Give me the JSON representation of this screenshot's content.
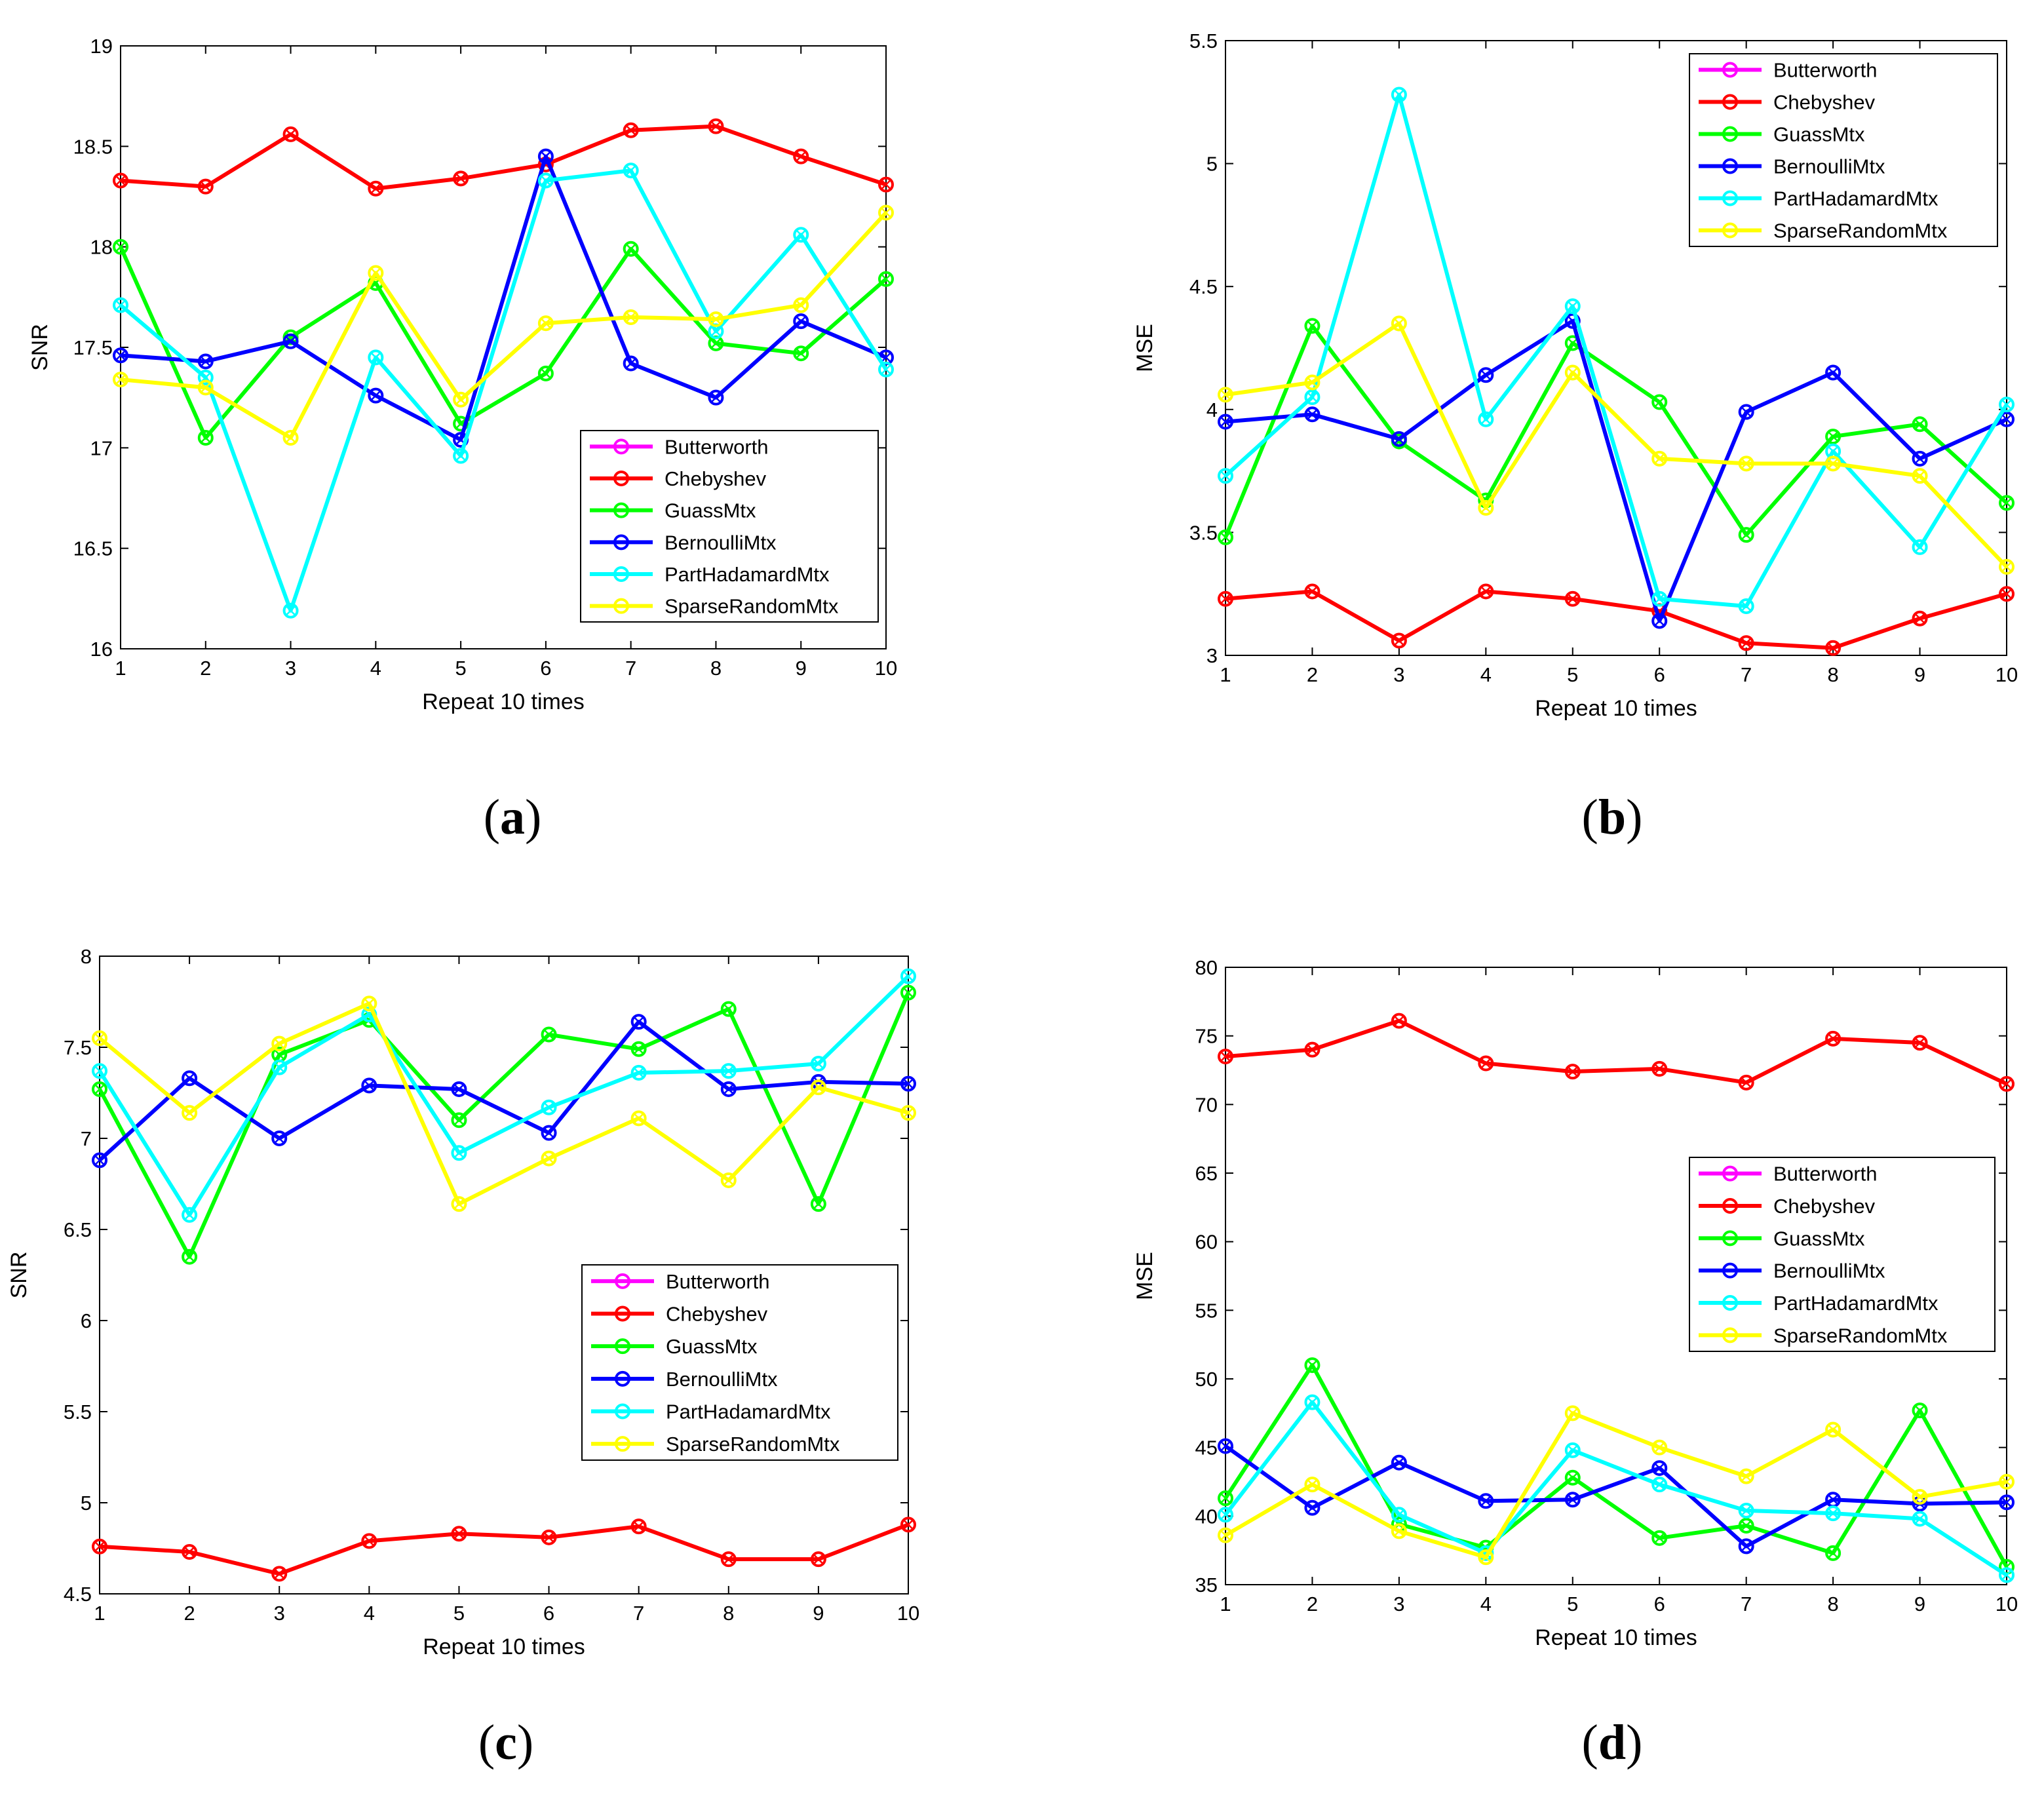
{
  "colors": {
    "Butterworth": "#ff00ff",
    "Chebyshev": "#ff0000",
    "GuassMtx": "#00ff00",
    "BernoulliMtx": "#0000ff",
    "PartHadamardMtx": "#00ffff",
    "SparseRandomMtx": "#ffff00"
  },
  "chart_data": [
    {
      "id": "a",
      "type": "line",
      "caption_letter": "a",
      "xlabel": "Repeat 10 times",
      "ylabel": "SNR",
      "xlim": [
        1,
        10
      ],
      "ylim": [
        16,
        19
      ],
      "yticks": [
        "16",
        "16.5",
        "17",
        "17.5",
        "18",
        "18.5",
        "19"
      ],
      "x": [
        1,
        2,
        3,
        4,
        5,
        6,
        7,
        8,
        9,
        10
      ],
      "legend_position": "lower-right",
      "legend": [
        "Butterworth",
        "Chebyshev",
        "GuassMtx",
        "BernoulliMtx",
        "PartHadamardMtx",
        "SparseRandomMtx"
      ],
      "series": [
        {
          "name": "Chebyshev",
          "values": [
            18.33,
            18.3,
            18.56,
            18.29,
            18.34,
            18.41,
            18.58,
            18.6,
            18.45,
            18.31
          ]
        },
        {
          "name": "GuassMtx",
          "values": [
            18.0,
            17.05,
            17.55,
            17.82,
            17.12,
            17.37,
            17.99,
            17.52,
            17.47,
            17.84
          ]
        },
        {
          "name": "BernoulliMtx",
          "values": [
            17.46,
            17.43,
            17.53,
            17.26,
            17.04,
            18.45,
            17.42,
            17.25,
            17.63,
            17.45
          ]
        },
        {
          "name": "PartHadamardMtx",
          "values": [
            17.71,
            17.35,
            16.19,
            17.45,
            16.96,
            18.33,
            18.38,
            17.58,
            18.06,
            17.39
          ]
        },
        {
          "name": "SparseRandomMtx",
          "values": [
            17.34,
            17.3,
            17.05,
            17.87,
            17.24,
            17.62,
            17.65,
            17.64,
            17.71,
            18.17
          ]
        }
      ]
    },
    {
      "id": "b",
      "type": "line",
      "caption_letter": "b",
      "xlabel": "Repeat 10 times",
      "ylabel": "MSE",
      "xlim": [
        1,
        10
      ],
      "ylim": [
        3,
        5.5
      ],
      "yticks": [
        "3",
        "3.5",
        "4",
        "4.5",
        "5",
        "5.5"
      ],
      "x": [
        1,
        2,
        3,
        4,
        5,
        6,
        7,
        8,
        9,
        10
      ],
      "legend_position": "top-right",
      "legend": [
        "Butterworth",
        "Chebyshev",
        "GuassMtx",
        "BernoulliMtx",
        "PartHadamardMtx",
        "SparseRandomMtx"
      ],
      "series": [
        {
          "name": "Chebyshev",
          "values": [
            3.23,
            3.26,
            3.06,
            3.26,
            3.23,
            3.18,
            3.05,
            3.03,
            3.15,
            3.25
          ]
        },
        {
          "name": "GuassMtx",
          "values": [
            3.48,
            4.34,
            3.87,
            3.63,
            4.27,
            4.03,
            3.49,
            3.89,
            3.94,
            3.62
          ]
        },
        {
          "name": "BernoulliMtx",
          "values": [
            3.95,
            3.98,
            3.88,
            4.14,
            4.36,
            3.14,
            3.99,
            4.15,
            3.8,
            3.96
          ]
        },
        {
          "name": "PartHadamardMtx",
          "values": [
            3.73,
            4.05,
            5.28,
            3.96,
            4.42,
            3.23,
            3.2,
            3.83,
            3.44,
            4.02
          ]
        },
        {
          "name": "SparseRandomMtx",
          "values": [
            4.06,
            4.11,
            4.35,
            3.6,
            4.15,
            3.8,
            3.78,
            3.78,
            3.73,
            3.36
          ]
        }
      ]
    },
    {
      "id": "c",
      "type": "line",
      "caption_letter": "c",
      "xlabel": "Repeat 10 times",
      "ylabel": "SNR",
      "xlim": [
        1,
        10
      ],
      "ylim": [
        4.5,
        8
      ],
      "yticks": [
        "4.5",
        "5",
        "5.5",
        "6",
        "6.5",
        "7",
        "7.5",
        "8"
      ],
      "x": [
        1,
        2,
        3,
        4,
        5,
        6,
        7,
        8,
        9,
        10
      ],
      "legend_position": "middle-right",
      "legend": [
        "Butterworth",
        "Chebyshev",
        "GuassMtx",
        "BernoulliMtx",
        "PartHadamardMtx",
        "SparseRandomMtx"
      ],
      "series": [
        {
          "name": "Chebyshev",
          "values": [
            4.76,
            4.73,
            4.61,
            4.79,
            4.83,
            4.81,
            4.87,
            4.69,
            4.69,
            4.88
          ]
        },
        {
          "name": "GuassMtx",
          "values": [
            7.27,
            6.35,
            7.46,
            7.65,
            7.1,
            7.57,
            7.49,
            7.71,
            6.64,
            7.8
          ]
        },
        {
          "name": "BernoulliMtx",
          "values": [
            6.88,
            7.33,
            7.0,
            7.29,
            7.27,
            7.03,
            7.64,
            7.27,
            7.31,
            7.3
          ]
        },
        {
          "name": "PartHadamardMtx",
          "values": [
            7.37,
            6.58,
            7.39,
            7.68,
            6.92,
            7.17,
            7.36,
            7.37,
            7.41,
            7.89
          ]
        },
        {
          "name": "SparseRandomMtx",
          "values": [
            7.55,
            7.14,
            7.52,
            7.74,
            6.64,
            6.89,
            7.11,
            6.77,
            7.28,
            7.14
          ]
        }
      ]
    },
    {
      "id": "d",
      "type": "line",
      "caption_letter": "d",
      "xlabel": "Repeat 10 times",
      "ylabel": "MSE",
      "xlim": [
        1,
        10
      ],
      "ylim": [
        35,
        80
      ],
      "yticks": [
        "35",
        "40",
        "45",
        "50",
        "55",
        "60",
        "65",
        "70",
        "75",
        "80"
      ],
      "x": [
        1,
        2,
        3,
        4,
        5,
        6,
        7,
        8,
        9,
        10
      ],
      "legend_position": "middle-right",
      "legend": [
        "Butterworth",
        "Chebyshev",
        "GuassMtx",
        "BernoulliMtx",
        "PartHadamardMtx",
        "SparseRandomMtx"
      ],
      "series": [
        {
          "name": "Chebyshev",
          "values": [
            73.5,
            74.0,
            76.1,
            73.0,
            72.4,
            72.6,
            71.6,
            74.8,
            74.5,
            71.5
          ]
        },
        {
          "name": "GuassMtx",
          "values": [
            41.3,
            51.0,
            39.4,
            37.7,
            42.8,
            38.4,
            39.3,
            37.3,
            47.7,
            36.3
          ]
        },
        {
          "name": "BernoulliMtx",
          "values": [
            45.1,
            40.6,
            43.9,
            41.1,
            41.2,
            43.5,
            37.8,
            41.2,
            40.9,
            41.0
          ]
        },
        {
          "name": "PartHadamardMtx",
          "values": [
            40.1,
            48.3,
            40.1,
            37.3,
            44.8,
            42.3,
            40.4,
            40.2,
            39.8,
            35.7
          ]
        },
        {
          "name": "SparseRandomMtx",
          "values": [
            38.6,
            42.3,
            38.9,
            37.0,
            47.5,
            45.0,
            42.9,
            46.3,
            41.4,
            42.5
          ]
        }
      ]
    }
  ]
}
